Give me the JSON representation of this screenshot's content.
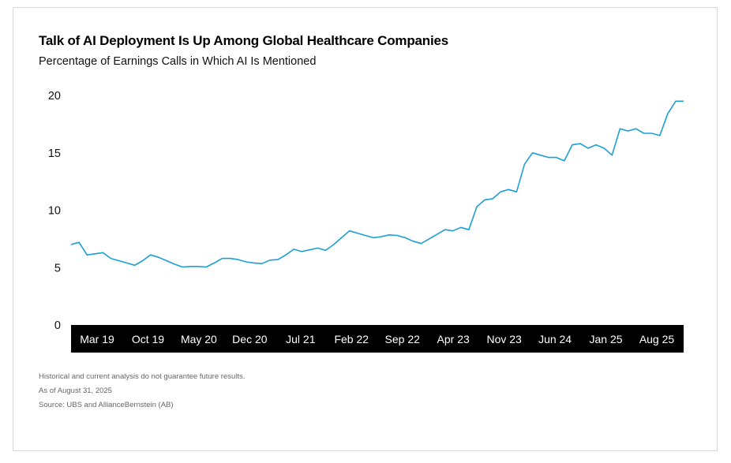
{
  "header": {
    "title": "Talk of AI Deployment Is Up Among Global Healthcare Companies",
    "subtitle": "Percentage of Earnings Calls in Which AI Is Mentioned"
  },
  "footnotes": [
    "Historical and current analysis do not guarantee future results.",
    "As of August 31, 2025",
    "Source: UBS and AllianceBernstein (AB)"
  ],
  "colors": {
    "line": "#1c9fd6",
    "axis_band": "#000000",
    "axis_text": "#ffffff"
  },
  "chart_data": {
    "type": "line",
    "ylim": [
      0,
      20
    ],
    "yticks": [
      0,
      5,
      10,
      15,
      20
    ],
    "grid": false,
    "xtick_labels": [
      "Mar 19",
      "Oct 19",
      "May 20",
      "Dec 20",
      "Jul 21",
      "Feb 22",
      "Sep 22",
      "Apr 23",
      "Nov 23",
      "Jun 24",
      "Jan 25",
      "Aug 25"
    ],
    "series": [
      {
        "values": [
          7.0,
          7.2,
          6.1,
          6.2,
          6.3,
          5.8,
          5.6,
          5.4,
          5.2,
          5.6,
          6.1,
          5.9,
          5.6,
          5.3,
          5.05,
          5.1,
          5.1,
          5.05,
          5.4,
          5.8,
          5.8,
          5.7,
          5.5,
          5.4,
          5.35,
          5.65,
          5.7,
          6.1,
          6.6,
          6.4,
          6.55,
          6.7,
          6.5,
          7.0,
          7.6,
          8.2,
          8.0,
          7.8,
          7.6,
          7.7,
          7.85,
          7.8,
          7.6,
          7.3,
          7.1,
          7.5,
          7.9,
          8.3,
          8.2,
          8.5,
          8.3,
          10.3,
          10.9,
          11.0,
          11.6,
          11.8,
          11.6,
          14.0,
          15.0,
          14.8,
          14.6,
          14.6,
          14.3,
          15.7,
          15.8,
          15.4,
          15.7,
          15.4,
          14.8,
          17.1,
          16.9,
          17.1,
          16.7,
          16.7,
          16.5,
          18.4,
          19.5,
          19.5
        ]
      }
    ]
  }
}
